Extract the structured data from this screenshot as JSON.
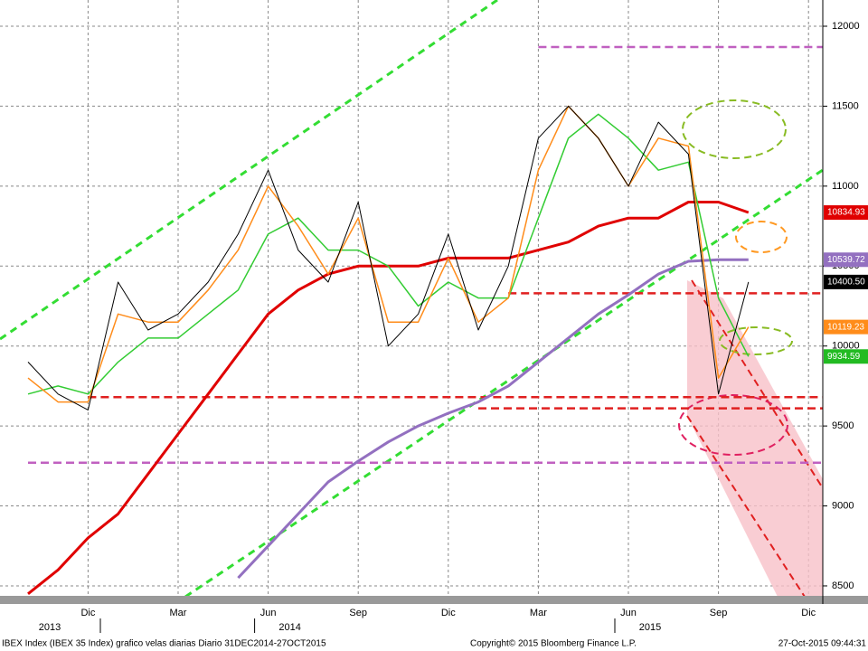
{
  "chart_data": {
    "type": "line",
    "categories": [
      null,
      null,
      "Dic",
      null,
      null,
      "Mar",
      null,
      null,
      "Jun",
      null,
      null,
      "Sep",
      null,
      null,
      "Dic",
      null,
      null,
      "Mar",
      null,
      null,
      "Jun",
      null,
      null,
      "Sep",
      null,
      null,
      "Dic"
    ],
    "years": [
      "2013",
      "2014",
      "2015"
    ],
    "series": [
      {
        "color": "#e00000",
        "width": 3,
        "values": [
          8450,
          8600,
          8800,
          8950,
          9200,
          9450,
          9700,
          9950,
          10200,
          10350,
          10450,
          10500,
          10500,
          10500,
          10550,
          10550,
          10550,
          10600,
          10650,
          10750,
          10800,
          10800,
          10900,
          10900,
          10834.93,
          null,
          null
        ]
      },
      {
        "color": "#9370c0",
        "width": 3,
        "values": [
          null,
          null,
          null,
          null,
          null,
          null,
          null,
          8550,
          8750,
          8950,
          9150,
          9280,
          9400,
          9500,
          9580,
          9650,
          9750,
          9900,
          10050,
          10200,
          10320,
          10450,
          10530,
          10540,
          10539.72,
          null,
          null
        ]
      },
      {
        "color": "#33cc33",
        "width": 1.5,
        "values": [
          9700,
          9750,
          9700,
          9900,
          10050,
          10050,
          10200,
          10350,
          10700,
          10800,
          10600,
          10600,
          10500,
          10250,
          10400,
          10300,
          10300,
          10800,
          11300,
          11450,
          11300,
          11100,
          11150,
          10300,
          9934.59,
          null,
          null
        ]
      },
      {
        "color": "#ff8c1a",
        "width": 1.5,
        "values": [
          9800,
          9650,
          9650,
          10200,
          10150,
          10150,
          10350,
          10600,
          11000,
          10750,
          10450,
          10800,
          10150,
          10150,
          10550,
          10150,
          10300,
          11100,
          11500,
          11300,
          11000,
          11300,
          11250,
          9800,
          10119.23,
          null,
          null
        ]
      },
      {
        "color": "#000000",
        "width": 1,
        "values": [
          9900,
          9700,
          9600,
          10400,
          10100,
          10200,
          10400,
          10700,
          11100,
          10600,
          10400,
          10900,
          10000,
          10200,
          10700,
          10100,
          10500,
          11300,
          11500,
          11300,
          11000,
          11400,
          11200,
          9700,
          10400.5,
          null,
          null
        ]
      }
    ],
    "levels": [
      {
        "value": 11870,
        "color": "#c060c0",
        "from": 17
      },
      {
        "value": 10330,
        "color": "#e02020",
        "from": 16
      },
      {
        "value": 9680,
        "color": "#e02020",
        "from": 2
      },
      {
        "value": 9610,
        "color": "#e02020",
        "from": 15
      },
      {
        "value": 9270,
        "color": "#c060c0",
        "from": 0
      }
    ],
    "tags": [
      {
        "value": 10834.93,
        "label": "10834.93",
        "color": "#e00000"
      },
      {
        "value": 10539.72,
        "label": "10539.72",
        "color": "#9370c0"
      },
      {
        "value": 10400.5,
        "label": "10400.50",
        "color": "#000000"
      },
      {
        "value": 10119.23,
        "label": "10119.23",
        "color": "#ff8c1a"
      },
      {
        "value": 9934.59,
        "label": "9934.59",
        "color": "#22bb22"
      }
    ],
    "ylim": [
      8432,
      12164
    ],
    "yticks": [
      8500,
      9000,
      9500,
      10000,
      10500,
      11000,
      11500,
      12000
    ],
    "grid": true,
    "footer_left": "IBEX Index (IBEX 35 Index) grafico velas diarias  Diario 31DEC2014-27OCT2015",
    "footer_center": "Copyright© 2015 Bloomberg Finance L.P.",
    "footer_right": "27-Oct-2015 09:44:31"
  }
}
